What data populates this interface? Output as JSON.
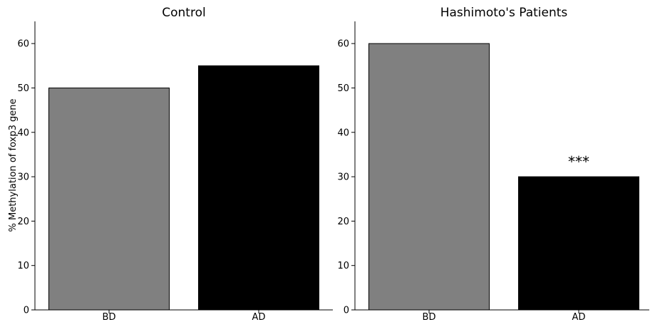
{
  "chart_data": [
    {
      "type": "bar",
      "title": "Control",
      "ylabel": "% Methylation of foxp3 gene",
      "xlabel": "",
      "categories": [
        "BD",
        "AD"
      ],
      "values": [
        50,
        55
      ],
      "colors": [
        "#808080",
        "#000000"
      ],
      "ylim": [
        0,
        65
      ],
      "yticks": [
        0,
        10,
        20,
        30,
        40,
        50,
        60
      ],
      "grid": false,
      "annotations": []
    },
    {
      "type": "bar",
      "title": "Hashimoto's Patients",
      "ylabel": "",
      "xlabel": "",
      "categories": [
        "BD",
        "AD"
      ],
      "values": [
        60,
        30
      ],
      "colors": [
        "#808080",
        "#000000"
      ],
      "ylim": [
        0,
        65
      ],
      "yticks": [
        0,
        10,
        20,
        30,
        40,
        50,
        60
      ],
      "grid": false,
      "annotations": [
        {
          "category": "AD",
          "text": "***"
        }
      ]
    }
  ]
}
